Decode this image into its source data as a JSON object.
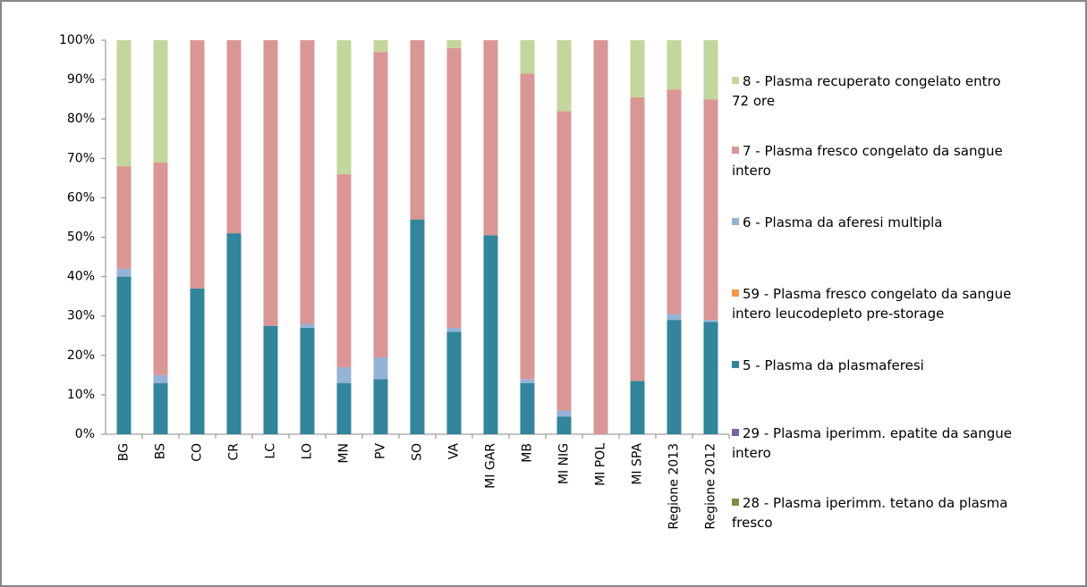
{
  "chart_data": {
    "type": "stacked_bar",
    "categories": [
      "BG",
      "BS",
      "CO",
      "CR",
      "LC",
      "LO",
      "MN",
      "PV",
      "SO",
      "VA",
      "MI GAR",
      "MB",
      "MI NIG",
      "MI POL",
      "MI SPA",
      "Regione 2013",
      "Regione 2012"
    ],
    "series": [
      {
        "name": "8 - Plasma recuperato congelato entro 72 ore",
        "color": "#c3d69b",
        "values": [
          32,
          31,
          0,
          0,
          0,
          0,
          34,
          3,
          0,
          2,
          0,
          8.5,
          18,
          0,
          14.5,
          12.5,
          15
        ]
      },
      {
        "name": "7 - Plasma fresco congelato da sangue intero",
        "color": "#d99694",
        "values": [
          26,
          54,
          63,
          49,
          72.5,
          72,
          49,
          77.5,
          45.5,
          71,
          49.5,
          77.5,
          76,
          100,
          72,
          57,
          56
        ]
      },
      {
        "name": "6 - Plasma da aferesi multipla",
        "color": "#95b3d7",
        "values": [
          2,
          2,
          0,
          0,
          0,
          1,
          4,
          5.5,
          0,
          1,
          0,
          1,
          1.5,
          0,
          0,
          1.5,
          0.5
        ]
      },
      {
        "name": "59 - Plasma fresco congelato da sangue intero leucodepleto pre-storage",
        "color": "#f79646",
        "values": [
          0,
          0,
          0,
          0,
          0,
          0,
          0,
          0,
          0,
          0,
          0,
          0,
          0,
          0,
          0,
          0,
          0
        ]
      },
      {
        "name": "5 - Plasma da plasmaferesi",
        "color": "#31859c",
        "values": [
          40,
          13,
          37,
          51,
          27.5,
          27,
          13,
          14,
          54.5,
          26,
          50.5,
          13,
          4.5,
          0,
          13.5,
          29,
          28.5
        ]
      },
      {
        "name": "29 - Plasma iperimm. epatite da sangue intero",
        "color": "#7f5fa1",
        "values": [
          0,
          0,
          0,
          0,
          0,
          0,
          0,
          0,
          0,
          0,
          0,
          0,
          0,
          0,
          0,
          0,
          0
        ]
      },
      {
        "name": "28 - Plasma iperimm. tetano da plasma fresco",
        "color": "#77933c",
        "values": [
          0,
          0,
          0,
          0,
          0,
          0,
          0,
          0,
          0,
          0,
          0,
          0,
          0,
          0,
          0,
          0,
          0
        ]
      }
    ],
    "ylim": [
      0,
      100
    ],
    "yticks": [
      {
        "value": 0,
        "label": "0%"
      },
      {
        "value": 10,
        "label": "10%"
      },
      {
        "value": 20,
        "label": "20%"
      },
      {
        "value": 30,
        "label": "30%"
      },
      {
        "value": 40,
        "label": "40%"
      },
      {
        "value": 50,
        "label": "50%"
      },
      {
        "value": 60,
        "label": "60%"
      },
      {
        "value": 70,
        "label": "70%"
      },
      {
        "value": 80,
        "label": "80%"
      },
      {
        "value": 90,
        "label": "90%"
      },
      {
        "value": 100,
        "label": "100%"
      }
    ],
    "grid": false,
    "legend": "right"
  }
}
